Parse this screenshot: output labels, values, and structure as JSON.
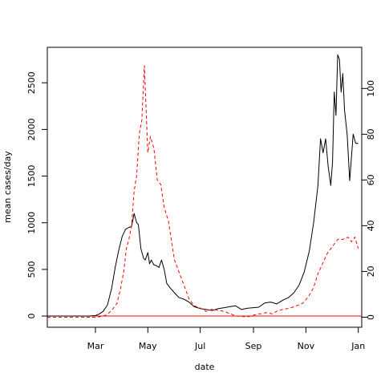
{
  "chart_data": {
    "type": "line",
    "xlabel": "date",
    "ylabel_left": "mean cases/day",
    "x_ticks": [
      "Mar",
      "May",
      "Jul",
      "Sep",
      "Nov",
      "Jan"
    ],
    "x_range": [
      "2020-01-05",
      "2021-01-05"
    ],
    "y_left_ticks": [
      0,
      500,
      1000,
      1500,
      2000,
      2500
    ],
    "y_left_range": [
      -120,
      2880
    ],
    "y_right_ticks": [
      0,
      20,
      40,
      60,
      80,
      100
    ],
    "y_right_range": [
      -4.4,
      118
    ],
    "zero_line_color": "#ff0000",
    "series": [
      {
        "axis": "left",
        "color": "#000000",
        "style": "solid",
        "x": [
          "2020-01-05",
          "2020-02-15",
          "2020-02-22",
          "2020-03-01",
          "2020-03-05",
          "2020-03-10",
          "2020-03-15",
          "2020-03-20",
          "2020-03-24",
          "2020-03-28",
          "2020-04-01",
          "2020-04-05",
          "2020-04-09",
          "2020-04-12",
          "2020-04-15",
          "2020-04-18",
          "2020-04-20",
          "2020-04-23",
          "2020-04-26",
          "2020-04-28",
          "2020-05-01",
          "2020-05-03",
          "2020-05-05",
          "2020-05-08",
          "2020-05-11",
          "2020-05-14",
          "2020-05-17",
          "2020-05-20",
          "2020-05-23",
          "2020-05-27",
          "2020-06-01",
          "2020-06-06",
          "2020-06-12",
          "2020-06-18",
          "2020-06-24",
          "2020-07-01",
          "2020-07-08",
          "2020-07-15",
          "2020-07-22",
          "2020-07-29",
          "2020-08-04",
          "2020-08-11",
          "2020-08-18",
          "2020-08-25",
          "2020-09-01",
          "2020-09-07",
          "2020-09-14",
          "2020-09-21",
          "2020-09-28",
          "2020-10-05",
          "2020-10-12",
          "2020-10-18",
          "2020-10-24",
          "2020-10-30",
          "2020-11-05",
          "2020-11-10",
          "2020-11-15",
          "2020-11-18",
          "2020-11-21",
          "2020-11-24",
          "2020-11-27",
          "2020-11-30",
          "2020-12-02",
          "2020-12-04",
          "2020-12-06",
          "2020-12-08",
          "2020-12-10",
          "2020-12-12",
          "2020-12-14",
          "2020-12-16",
          "2020-12-19",
          "2020-12-22",
          "2020-12-26",
          "2020-12-29",
          "2021-01-01"
        ],
        "y": [
          0,
          0,
          0,
          5,
          20,
          50,
          120,
          300,
          520,
          700,
          850,
          930,
          950,
          960,
          1100,
          1000,
          980,
          720,
          620,
          600,
          680,
          560,
          600,
          550,
          540,
          520,
          600,
          500,
          350,
          300,
          250,
          200,
          180,
          150,
          100,
          80,
          70,
          60,
          80,
          90,
          100,
          110,
          70,
          85,
          90,
          95,
          140,
          150,
          130,
          170,
          200,
          250,
          330,
          470,
          700,
          1000,
          1400,
          1900,
          1750,
          1900,
          1600,
          1400,
          1650,
          2400,
          2150,
          2800,
          2750,
          2400,
          2600,
          2200,
          1950,
          1450,
          1950,
          1850,
          1850
        ]
      },
      {
        "axis": "right",
        "color": "#ff0000",
        "style": "dashed",
        "x": [
          "2020-01-05",
          "2020-02-20",
          "2020-03-01",
          "2020-03-08",
          "2020-03-14",
          "2020-03-20",
          "2020-03-26",
          "2020-03-30",
          "2020-04-03",
          "2020-04-06",
          "2020-04-09",
          "2020-04-12",
          "2020-04-15",
          "2020-04-18",
          "2020-04-21",
          "2020-04-24",
          "2020-04-27",
          "2020-05-01",
          "2020-05-04",
          "2020-05-08",
          "2020-05-12",
          "2020-05-16",
          "2020-05-20",
          "2020-05-25",
          "2020-06-01",
          "2020-06-06",
          "2020-06-12",
          "2020-06-18",
          "2020-06-24",
          "2020-07-01",
          "2020-07-08",
          "2020-07-15",
          "2020-07-22",
          "2020-07-29",
          "2020-08-05",
          "2020-08-12",
          "2020-08-19",
          "2020-08-26",
          "2020-09-02",
          "2020-09-09",
          "2020-09-16",
          "2020-09-23",
          "2020-09-30",
          "2020-10-07",
          "2020-10-14",
          "2020-10-21",
          "2020-10-28",
          "2020-11-04",
          "2020-11-10",
          "2020-11-15",
          "2020-11-20",
          "2020-11-26",
          "2020-12-02",
          "2020-12-08",
          "2020-12-14",
          "2020-12-20",
          "2020-12-24",
          "2020-12-28",
          "2021-01-01"
        ],
        "y": [
          0,
          0,
          0,
          0.3,
          1,
          3,
          6,
          12,
          20,
          30,
          34,
          40,
          55,
          62,
          80,
          86,
          110,
          72,
          79,
          74,
          60,
          58,
          48,
          42,
          25,
          20,
          14,
          8,
          5,
          4,
          2.5,
          3.5,
          3,
          2.5,
          1.5,
          0.5,
          0.3,
          0.2,
          1,
          1.5,
          2,
          1.5,
          3,
          3.5,
          4,
          5,
          6,
          9,
          13,
          19,
          23,
          28,
          31,
          34,
          34,
          35,
          33,
          35,
          30
        ]
      }
    ]
  }
}
